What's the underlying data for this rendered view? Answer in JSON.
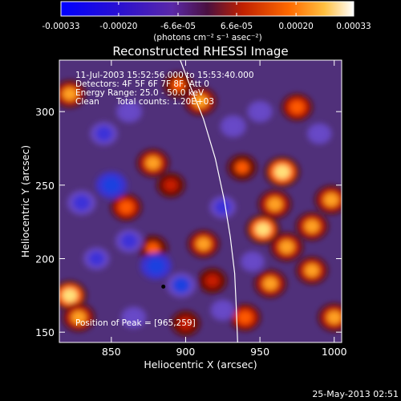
{
  "chart_data": {
    "type": "heatmap",
    "title": "Reconstructed RHESSI Image",
    "xlabel": "Heliocentric X (arcsec)",
    "ylabel": "Heliocentric Y (arcsec)",
    "xlim": [
      815,
      1005
    ],
    "ylim": [
      143,
      335
    ],
    "x_ticks": [
      850,
      900,
      950,
      1000
    ],
    "y_ticks": [
      150,
      200,
      250,
      300
    ],
    "annotations": [
      "11-Jul-2003 15:52:56.000 to 15:53:40.000",
      "Detectors: 4F 5F 6F 7F 8F, Att 0",
      "Energy Range: 25.0 - 50.0 keV",
      "Clean",
      "Total counts: 1.20E+03"
    ],
    "peak_label": "Position of Peak = [965,259]",
    "peak": [
      965,
      259
    ],
    "marker_point": [
      885,
      181
    ],
    "colorbar": {
      "tick_labels": [
        "-0.00033",
        "-0.00020",
        "-6.6e-05",
        "6.6e-05",
        "0.00020",
        "0.00033"
      ],
      "tick_values": [
        -0.00033,
        -0.0002,
        -6.6e-05,
        6.6e-05,
        0.0002,
        0.00033
      ],
      "range": [
        -0.00033,
        0.00033
      ],
      "units_label": "(photons cm⁻² s⁻¹ asec⁻²)"
    },
    "blobs": [
      {
        "x": 965,
        "y": 259,
        "v": 1.0
      },
      {
        "x": 960,
        "y": 237,
        "v": 0.85
      },
      {
        "x": 952,
        "y": 220,
        "v": 0.9
      },
      {
        "x": 968,
        "y": 208,
        "v": 0.85
      },
      {
        "x": 985,
        "y": 222,
        "v": 0.8
      },
      {
        "x": 998,
        "y": 240,
        "v": 0.85
      },
      {
        "x": 957,
        "y": 183,
        "v": 0.8
      },
      {
        "x": 985,
        "y": 192,
        "v": 0.75
      },
      {
        "x": 940,
        "y": 160,
        "v": 0.7
      },
      {
        "x": 1000,
        "y": 160,
        "v": 0.8
      },
      {
        "x": 975,
        "y": 303,
        "v": 0.7
      },
      {
        "x": 910,
        "y": 307,
        "v": 0.8
      },
      {
        "x": 895,
        "y": 318,
        "v": 0.6
      },
      {
        "x": 878,
        "y": 265,
        "v": 0.8
      },
      {
        "x": 890,
        "y": 250,
        "v": 0.5
      },
      {
        "x": 860,
        "y": 235,
        "v": 0.7
      },
      {
        "x": 878,
        "y": 207,
        "v": 0.6
      },
      {
        "x": 912,
        "y": 210,
        "v": 0.75
      },
      {
        "x": 918,
        "y": 185,
        "v": 0.55
      },
      {
        "x": 822,
        "y": 312,
        "v": 0.75
      },
      {
        "x": 822,
        "y": 175,
        "v": 0.9
      },
      {
        "x": 828,
        "y": 160,
        "v": 0.8
      },
      {
        "x": 900,
        "y": 156,
        "v": 0.55
      },
      {
        "x": 938,
        "y": 262,
        "v": 0.6
      },
      {
        "x": 850,
        "y": 250,
        "v": -0.9
      },
      {
        "x": 830,
        "y": 238,
        "v": -0.7
      },
      {
        "x": 880,
        "y": 195,
        "v": -0.9
      },
      {
        "x": 897,
        "y": 182,
        "v": -0.75
      },
      {
        "x": 862,
        "y": 212,
        "v": -0.6
      },
      {
        "x": 840,
        "y": 200,
        "v": -0.5
      },
      {
        "x": 845,
        "y": 285,
        "v": -0.6
      },
      {
        "x": 862,
        "y": 300,
        "v": -0.45
      },
      {
        "x": 925,
        "y": 235,
        "v": -0.5
      },
      {
        "x": 950,
        "y": 300,
        "v": -0.4
      },
      {
        "x": 932,
        "y": 290,
        "v": -0.45
      },
      {
        "x": 990,
        "y": 285,
        "v": -0.35
      },
      {
        "x": 865,
        "y": 160,
        "v": -0.4
      },
      {
        "x": 925,
        "y": 165,
        "v": -0.35
      },
      {
        "x": 945,
        "y": 198,
        "v": -0.3
      }
    ],
    "limb_curve": [
      [
        896,
        336
      ],
      [
        902,
        320
      ],
      [
        912,
        295
      ],
      [
        920,
        268
      ],
      [
        926,
        240
      ],
      [
        930,
        215
      ],
      [
        933,
        190
      ],
      [
        934,
        168
      ],
      [
        935,
        143
      ]
    ]
  },
  "footer": {
    "timestamp": "25-May-2013 02:51"
  }
}
